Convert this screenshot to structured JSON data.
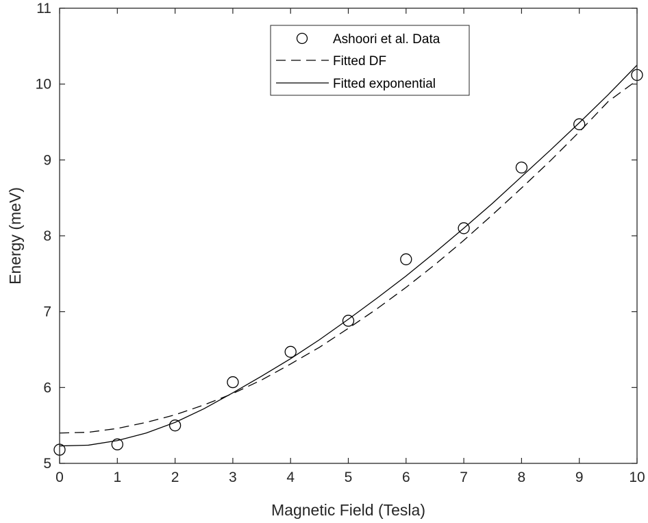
{
  "chart_data": {
    "type": "line",
    "xlabel": "Magnetic Field (Tesla)",
    "ylabel": "Energy (meV)",
    "xlim": [
      0,
      10
    ],
    "ylim": [
      5,
      11
    ],
    "xticks": [
      0,
      1,
      2,
      3,
      4,
      5,
      6,
      7,
      8,
      9,
      10
    ],
    "yticks": [
      5,
      6,
      7,
      8,
      9,
      10,
      11
    ],
    "grid": false,
    "legend_position": "top-center",
    "series": [
      {
        "name": "Ashoori et al. Data",
        "style": "markers-open-circle",
        "color": "#000000",
        "x": [
          0,
          1,
          2,
          3,
          4,
          5,
          6,
          7,
          8,
          9,
          10
        ],
        "y": [
          5.18,
          5.25,
          5.5,
          6.07,
          6.47,
          6.88,
          7.69,
          8.1,
          8.9,
          9.47,
          10.12
        ]
      },
      {
        "name": "Fitted DF",
        "style": "dashed-line",
        "color": "#000000",
        "x": [
          0,
          0.5,
          1,
          1.5,
          2,
          2.5,
          3,
          3.5,
          4,
          4.5,
          5,
          5.5,
          6,
          6.5,
          7,
          7.5,
          8,
          8.5,
          9,
          9.5,
          10
        ],
        "y": [
          5.4,
          5.41,
          5.46,
          5.54,
          5.64,
          5.77,
          5.92,
          6.1,
          6.31,
          6.53,
          6.78,
          7.04,
          7.32,
          7.62,
          7.94,
          8.28,
          8.63,
          8.99,
          9.37,
          9.77,
          10.05
        ]
      },
      {
        "name": "Fitted exponential",
        "style": "solid-line",
        "color": "#000000",
        "x": [
          0,
          0.5,
          1,
          1.5,
          2,
          2.5,
          3,
          3.5,
          4,
          4.5,
          5,
          5.5,
          6,
          6.5,
          7,
          7.5,
          8,
          8.5,
          9,
          9.5,
          10
        ],
        "y": [
          5.23,
          5.24,
          5.3,
          5.4,
          5.54,
          5.72,
          5.93,
          6.15,
          6.38,
          6.63,
          6.9,
          7.18,
          7.47,
          7.78,
          8.1,
          8.43,
          8.78,
          9.13,
          9.49,
          9.86,
          10.25
        ]
      }
    ]
  }
}
